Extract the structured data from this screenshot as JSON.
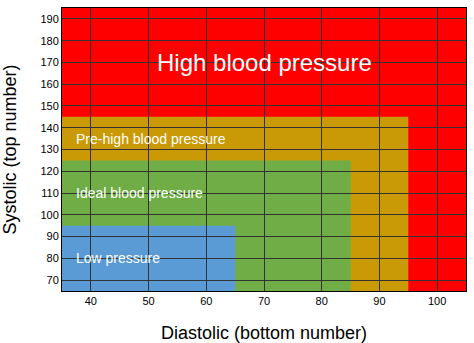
{
  "chart_data": {
    "type": "region",
    "xlabel": "Diastolic (bottom number)",
    "ylabel": "Systolic (top number)",
    "xlim": [
      35,
      105
    ],
    "ylim": [
      65,
      195
    ],
    "xticks": [
      40,
      50,
      60,
      70,
      80,
      90,
      100
    ],
    "yticks": [
      70,
      80,
      90,
      100,
      110,
      120,
      130,
      140,
      150,
      160,
      170,
      180,
      190
    ],
    "grid": true,
    "regions": [
      {
        "name": "High blood pressure",
        "x0": 35,
        "x1": 105,
        "y0": 65,
        "y1": 195,
        "color": "#ff0000"
      },
      {
        "name": "Pre-high blood pressure",
        "x0": 35,
        "x1": 95,
        "y0": 65,
        "y1": 145,
        "color": "#c99a06"
      },
      {
        "name": "Ideal blood pressure",
        "x0": 35,
        "x1": 85,
        "y0": 65,
        "y1": 125,
        "color": "#70ad47"
      },
      {
        "name": "Low pressure",
        "x0": 35,
        "x1": 65,
        "y0": 65,
        "y1": 95,
        "color": "#5b9bd5"
      }
    ]
  }
}
